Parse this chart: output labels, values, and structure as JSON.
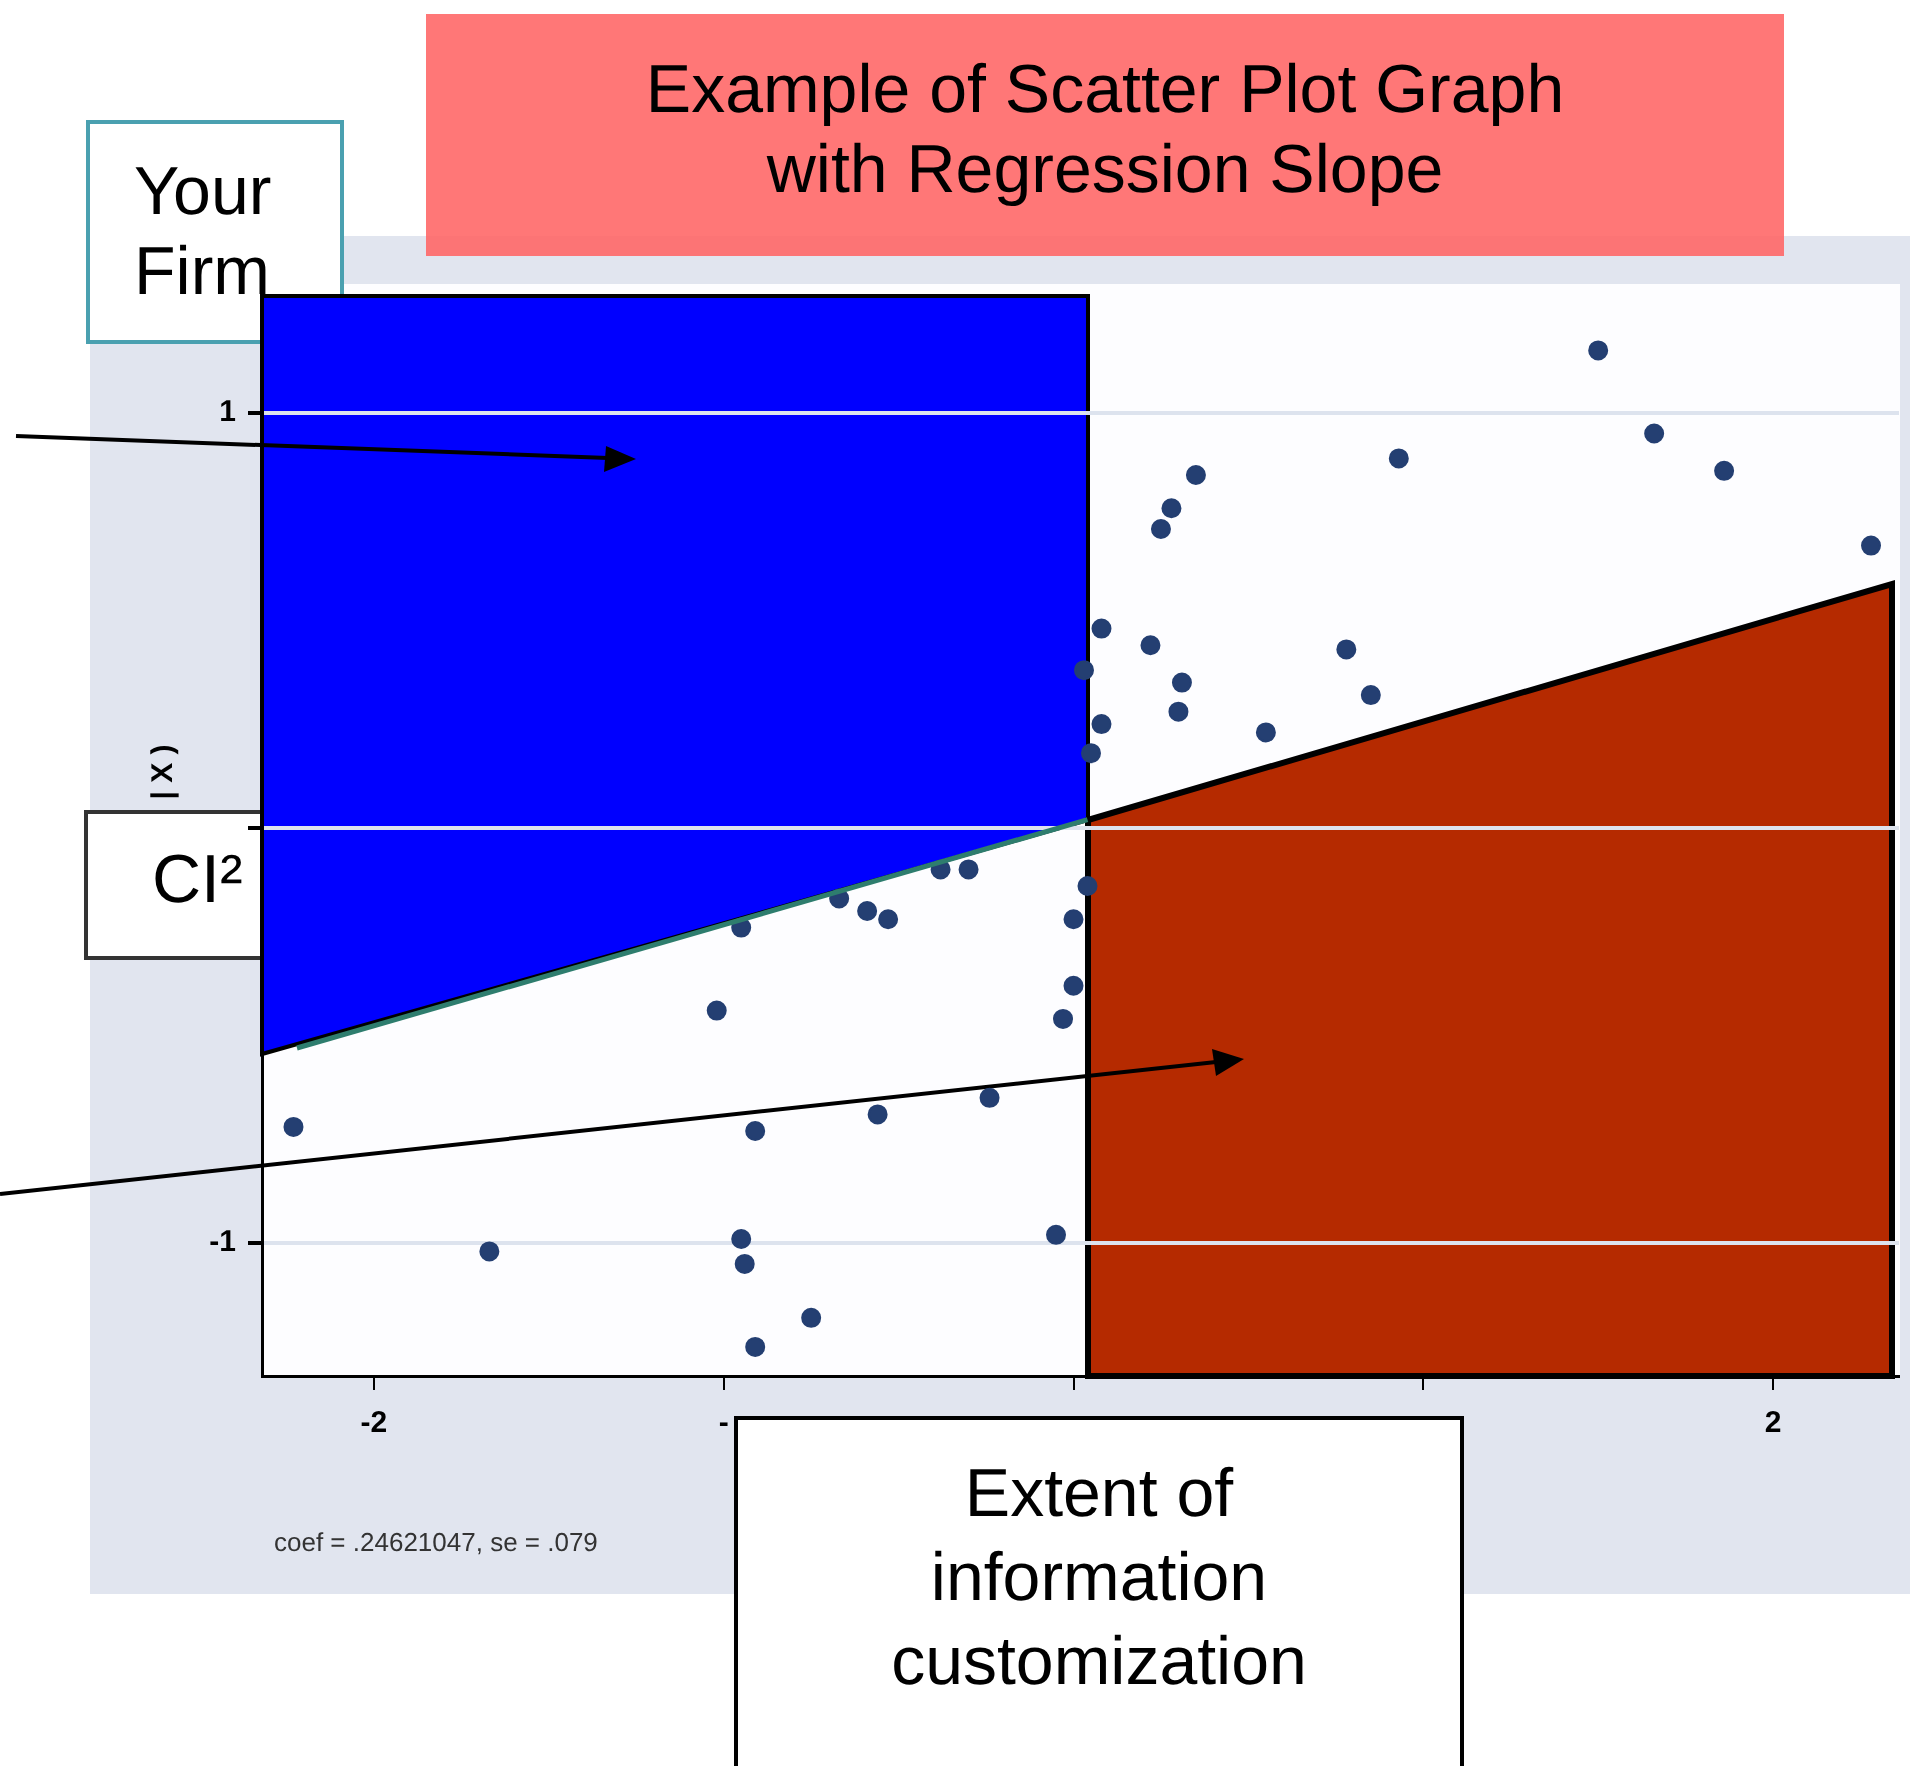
{
  "chart_data": {
    "type": "scatter",
    "title": "Example of Scatter Plot Graph with Regression Slope",
    "ylabel": "| X )",
    "xlim": [
      -2.32,
      2.36
    ],
    "ylim": [
      -1.32,
      1.31
    ],
    "xticks": [
      -2,
      {
        "value": -1,
        "label": "-"
      },
      {
        "value": 0,
        "label": null
      },
      {
        "value": 1,
        "label": null
      },
      2
    ],
    "yticks": [
      -1,
      {
        "value": 0,
        "label": null
      },
      1
    ],
    "grid": "y",
    "legend": false,
    "marker": "circle",
    "annotations": [
      "Your Firm",
      "CI²",
      "Extent of information customization",
      "coef = .24621047, se = .079"
    ],
    "series": [
      {
        "color": "#243f72",
        "x": [
          1.5,
          1.66,
          1.86,
          2.28,
          0.93,
          0.35,
          0.28,
          0.25,
          0.08,
          0.22,
          0.78,
          0.31,
          0.85,
          0.08,
          0.3,
          0.55,
          0.05,
          0.03,
          -0.38,
          -0.3,
          -0.67,
          -0.59,
          -0.53,
          -0.95,
          0,
          0.04,
          0,
          -0.03,
          -1.02,
          -2.23,
          -0.91,
          -0.56,
          -0.24,
          -1.67,
          -0.95,
          -0.94,
          -0.05,
          -0.75,
          -0.91
        ],
        "values": [
          1.15,
          0.95,
          0.86,
          0.68,
          0.89,
          0.85,
          0.77,
          0.72,
          0.48,
          0.44,
          0.43,
          0.35,
          0.32,
          0.25,
          0.28,
          0.23,
          0.18,
          0.38,
          -0.1,
          -0.1,
          -0.17,
          -0.2,
          -0.22,
          -0.24,
          -0.22,
          -0.14,
          -0.38,
          -0.46,
          -0.44,
          -0.72,
          -0.73,
          -0.69,
          -0.65,
          -1.02,
          -0.99,
          -1.05,
          -0.98,
          -1.18,
          -1.25
        ]
      },
      {
        "type": "line",
        "color": "#2e7d6e",
        "marker": "none",
        "x": [
          -2.22,
          0.04
        ],
        "values": [
          -0.53,
          0.02
        ]
      }
    ]
  }
}
